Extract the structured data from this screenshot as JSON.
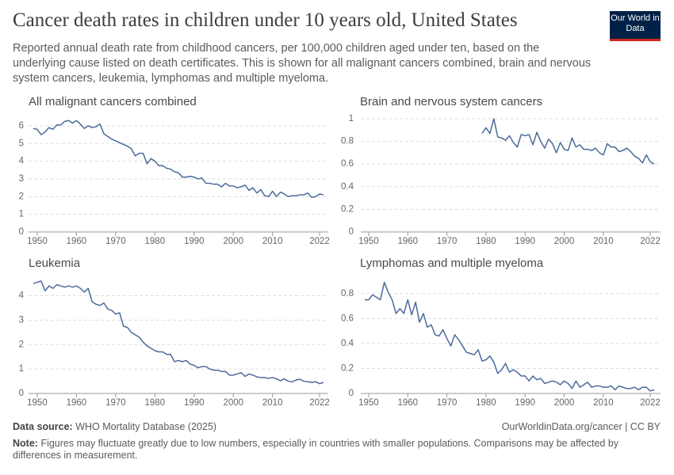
{
  "title": "Cancer death rates in children under 10 years old, United States",
  "subtitle": "Reported annual death rate from childhood cancers, per 100,000 children aged under ten, based on the underlying cause listed on death certificates. This is shown for all malignant cancers combined, brain and nervous system cancers, leukemia, lymphomas and multiple myeloma.",
  "logo": "Our World in Data",
  "source_label": "Data source:",
  "source": "WHO Mortality Database (2025)",
  "url": "OurWorldinData.org/cancer | CC BY",
  "note_label": "Note:",
  "note": "Figures may fluctuate greatly due to low numbers, especially in countries with smaller populations. Comparisons may be affected by differences in measurement.",
  "chart_data": [
    {
      "type": "line",
      "title": "All malignant cancers combined",
      "color": "#4c6a9c",
      "grid": true,
      "xlim": [
        1949,
        2023
      ],
      "xticks": [
        1950,
        1960,
        1970,
        1980,
        1990,
        2000,
        2010,
        2022
      ],
      "ylim": [
        0,
        6.4
      ],
      "yticks": [
        0,
        1,
        2,
        3,
        4,
        5,
        6
      ],
      "x": [
        1949,
        1950,
        1951,
        1952,
        1953,
        1954,
        1955,
        1956,
        1957,
        1958,
        1959,
        1960,
        1961,
        1962,
        1963,
        1964,
        1965,
        1966,
        1967,
        1968,
        1969,
        1970,
        1971,
        1972,
        1973,
        1974,
        1975,
        1976,
        1977,
        1978,
        1979,
        1980,
        1981,
        1982,
        1983,
        1984,
        1985,
        1986,
        1987,
        1988,
        1989,
        1990,
        1991,
        1992,
        1993,
        1994,
        1995,
        1996,
        1997,
        1998,
        1999,
        2000,
        2001,
        2002,
        2003,
        2004,
        2005,
        2006,
        2007,
        2008,
        2009,
        2010,
        2011,
        2012,
        2013,
        2014,
        2015,
        2016,
        2017,
        2018,
        2019,
        2020,
        2021,
        2022,
        2023
      ],
      "values": [
        5.85,
        5.8,
        5.5,
        5.65,
        5.9,
        5.8,
        6.05,
        6.05,
        6.25,
        6.3,
        6.15,
        6.3,
        6.1,
        5.85,
        6.0,
        5.9,
        5.95,
        6.1,
        5.55,
        5.4,
        5.25,
        5.15,
        5.05,
        4.95,
        4.85,
        4.7,
        4.3,
        4.45,
        4.45,
        3.85,
        4.15,
        4.0,
        3.75,
        3.75,
        3.6,
        3.55,
        3.4,
        3.35,
        3.1,
        3.1,
        3.15,
        3.1,
        3.0,
        3.05,
        2.75,
        2.75,
        2.7,
        2.7,
        2.55,
        2.75,
        2.6,
        2.6,
        2.5,
        2.55,
        2.65,
        2.35,
        2.5,
        2.2,
        2.4,
        2.05,
        2.0,
        2.3,
        2.0,
        2.25,
        2.15,
        2.0,
        2.05,
        2.05,
        2.1,
        2.1,
        2.2,
        1.95,
        2.0,
        2.15,
        2.1
      ]
    },
    {
      "type": "line",
      "title": "Brain and nervous system cancers",
      "color": "#4c6a9c",
      "grid": true,
      "xlim": [
        1949,
        2023
      ],
      "xticks": [
        1950,
        1960,
        1970,
        1980,
        1990,
        2000,
        2010,
        2022
      ],
      "ylim": [
        0,
        1
      ],
      "yticks": [
        0,
        0.2,
        0.4,
        0.6,
        0.8,
        1
      ],
      "x": [
        1979,
        1980,
        1981,
        1982,
        1983,
        1984,
        1985,
        1986,
        1987,
        1988,
        1989,
        1990,
        1991,
        1992,
        1993,
        1994,
        1995,
        1996,
        1997,
        1998,
        1999,
        2000,
        2001,
        2002,
        2003,
        2004,
        2005,
        2006,
        2007,
        2008,
        2009,
        2010,
        2011,
        2012,
        2013,
        2014,
        2015,
        2016,
        2017,
        2018,
        2019,
        2020,
        2021,
        2022,
        2023
      ],
      "values": [
        0.87,
        0.92,
        0.87,
        1.0,
        0.84,
        0.83,
        0.81,
        0.85,
        0.79,
        0.75,
        0.86,
        0.85,
        0.86,
        0.77,
        0.88,
        0.8,
        0.74,
        0.82,
        0.78,
        0.7,
        0.79,
        0.73,
        0.72,
        0.83,
        0.75,
        0.77,
        0.73,
        0.73,
        0.72,
        0.74,
        0.7,
        0.68,
        0.78,
        0.75,
        0.75,
        0.71,
        0.72,
        0.74,
        0.71,
        0.67,
        0.65,
        0.61,
        0.68,
        0.62,
        0.6
      ]
    },
    {
      "type": "line",
      "title": "Leukemia",
      "color": "#4c6a9c",
      "grid": true,
      "xlim": [
        1949,
        2023
      ],
      "xticks": [
        1950,
        1960,
        1970,
        1980,
        1990,
        2000,
        2010,
        2022
      ],
      "ylim": [
        0,
        4.6
      ],
      "yticks": [
        0,
        1,
        2,
        3,
        4
      ],
      "x": [
        1949,
        1950,
        1951,
        1952,
        1953,
        1954,
        1955,
        1956,
        1957,
        1958,
        1959,
        1960,
        1961,
        1962,
        1963,
        1964,
        1965,
        1966,
        1967,
        1968,
        1969,
        1970,
        1971,
        1972,
        1973,
        1974,
        1975,
        1976,
        1977,
        1978,
        1979,
        1980,
        1981,
        1982,
        1983,
        1984,
        1985,
        1986,
        1987,
        1988,
        1989,
        1990,
        1991,
        1992,
        1993,
        1994,
        1995,
        1996,
        1997,
        1998,
        1999,
        2000,
        2001,
        2002,
        2003,
        2004,
        2005,
        2006,
        2007,
        2008,
        2009,
        2010,
        2011,
        2012,
        2013,
        2014,
        2015,
        2016,
        2017,
        2018,
        2019,
        2020,
        2021,
        2022,
        2023
      ],
      "values": [
        4.5,
        4.55,
        4.6,
        4.2,
        4.4,
        4.3,
        4.45,
        4.4,
        4.35,
        4.4,
        4.35,
        4.4,
        4.3,
        4.15,
        4.3,
        3.75,
        3.65,
        3.6,
        3.7,
        3.45,
        3.4,
        3.25,
        3.3,
        2.75,
        2.7,
        2.5,
        2.4,
        2.3,
        2.1,
        1.95,
        1.85,
        1.75,
        1.7,
        1.7,
        1.6,
        1.6,
        1.3,
        1.35,
        1.3,
        1.35,
        1.2,
        1.15,
        1.05,
        1.1,
        1.1,
        1.0,
        0.95,
        0.95,
        0.9,
        0.9,
        0.75,
        0.75,
        0.8,
        0.85,
        0.7,
        0.8,
        0.75,
        0.68,
        0.65,
        0.65,
        0.62,
        0.65,
        0.6,
        0.52,
        0.6,
        0.5,
        0.48,
        0.55,
        0.58,
        0.5,
        0.48,
        0.45,
        0.48,
        0.4,
        0.45
      ]
    },
    {
      "type": "line",
      "title": "Lymphomas and multiple myeloma",
      "color": "#4c6a9c",
      "grid": true,
      "xlim": [
        1949,
        2023
      ],
      "xticks": [
        1950,
        1960,
        1970,
        1980,
        1990,
        2000,
        2010,
        2022
      ],
      "ylim": [
        0,
        0.9
      ],
      "yticks": [
        0,
        0.2,
        0.4,
        0.6,
        0.8
      ],
      "x": [
        1949,
        1950,
        1951,
        1952,
        1953,
        1954,
        1955,
        1956,
        1957,
        1958,
        1959,
        1960,
        1961,
        1962,
        1963,
        1964,
        1965,
        1966,
        1967,
        1968,
        1969,
        1970,
        1971,
        1972,
        1973,
        1974,
        1975,
        1976,
        1977,
        1978,
        1979,
        1980,
        1981,
        1982,
        1983,
        1984,
        1985,
        1986,
        1987,
        1988,
        1989,
        1990,
        1991,
        1992,
        1993,
        1994,
        1995,
        1996,
        1997,
        1998,
        1999,
        2000,
        2001,
        2002,
        2003,
        2004,
        2005,
        2006,
        2007,
        2008,
        2009,
        2010,
        2011,
        2012,
        2013,
        2014,
        2015,
        2016,
        2017,
        2018,
        2019,
        2020,
        2021,
        2022,
        2023
      ],
      "values": [
        0.75,
        0.75,
        0.79,
        0.77,
        0.75,
        0.89,
        0.81,
        0.75,
        0.64,
        0.68,
        0.64,
        0.75,
        0.63,
        0.73,
        0.57,
        0.64,
        0.53,
        0.55,
        0.47,
        0.46,
        0.51,
        0.44,
        0.38,
        0.47,
        0.43,
        0.38,
        0.33,
        0.32,
        0.31,
        0.35,
        0.26,
        0.27,
        0.3,
        0.25,
        0.16,
        0.19,
        0.24,
        0.17,
        0.19,
        0.17,
        0.14,
        0.14,
        0.1,
        0.14,
        0.11,
        0.12,
        0.08,
        0.09,
        0.1,
        0.09,
        0.07,
        0.1,
        0.08,
        0.04,
        0.1,
        0.05,
        0.07,
        0.09,
        0.05,
        0.06,
        0.06,
        0.05,
        0.05,
        0.06,
        0.03,
        0.06,
        0.05,
        0.04,
        0.04,
        0.05,
        0.03,
        0.05,
        0.05,
        0.02,
        0.03
      ]
    }
  ]
}
